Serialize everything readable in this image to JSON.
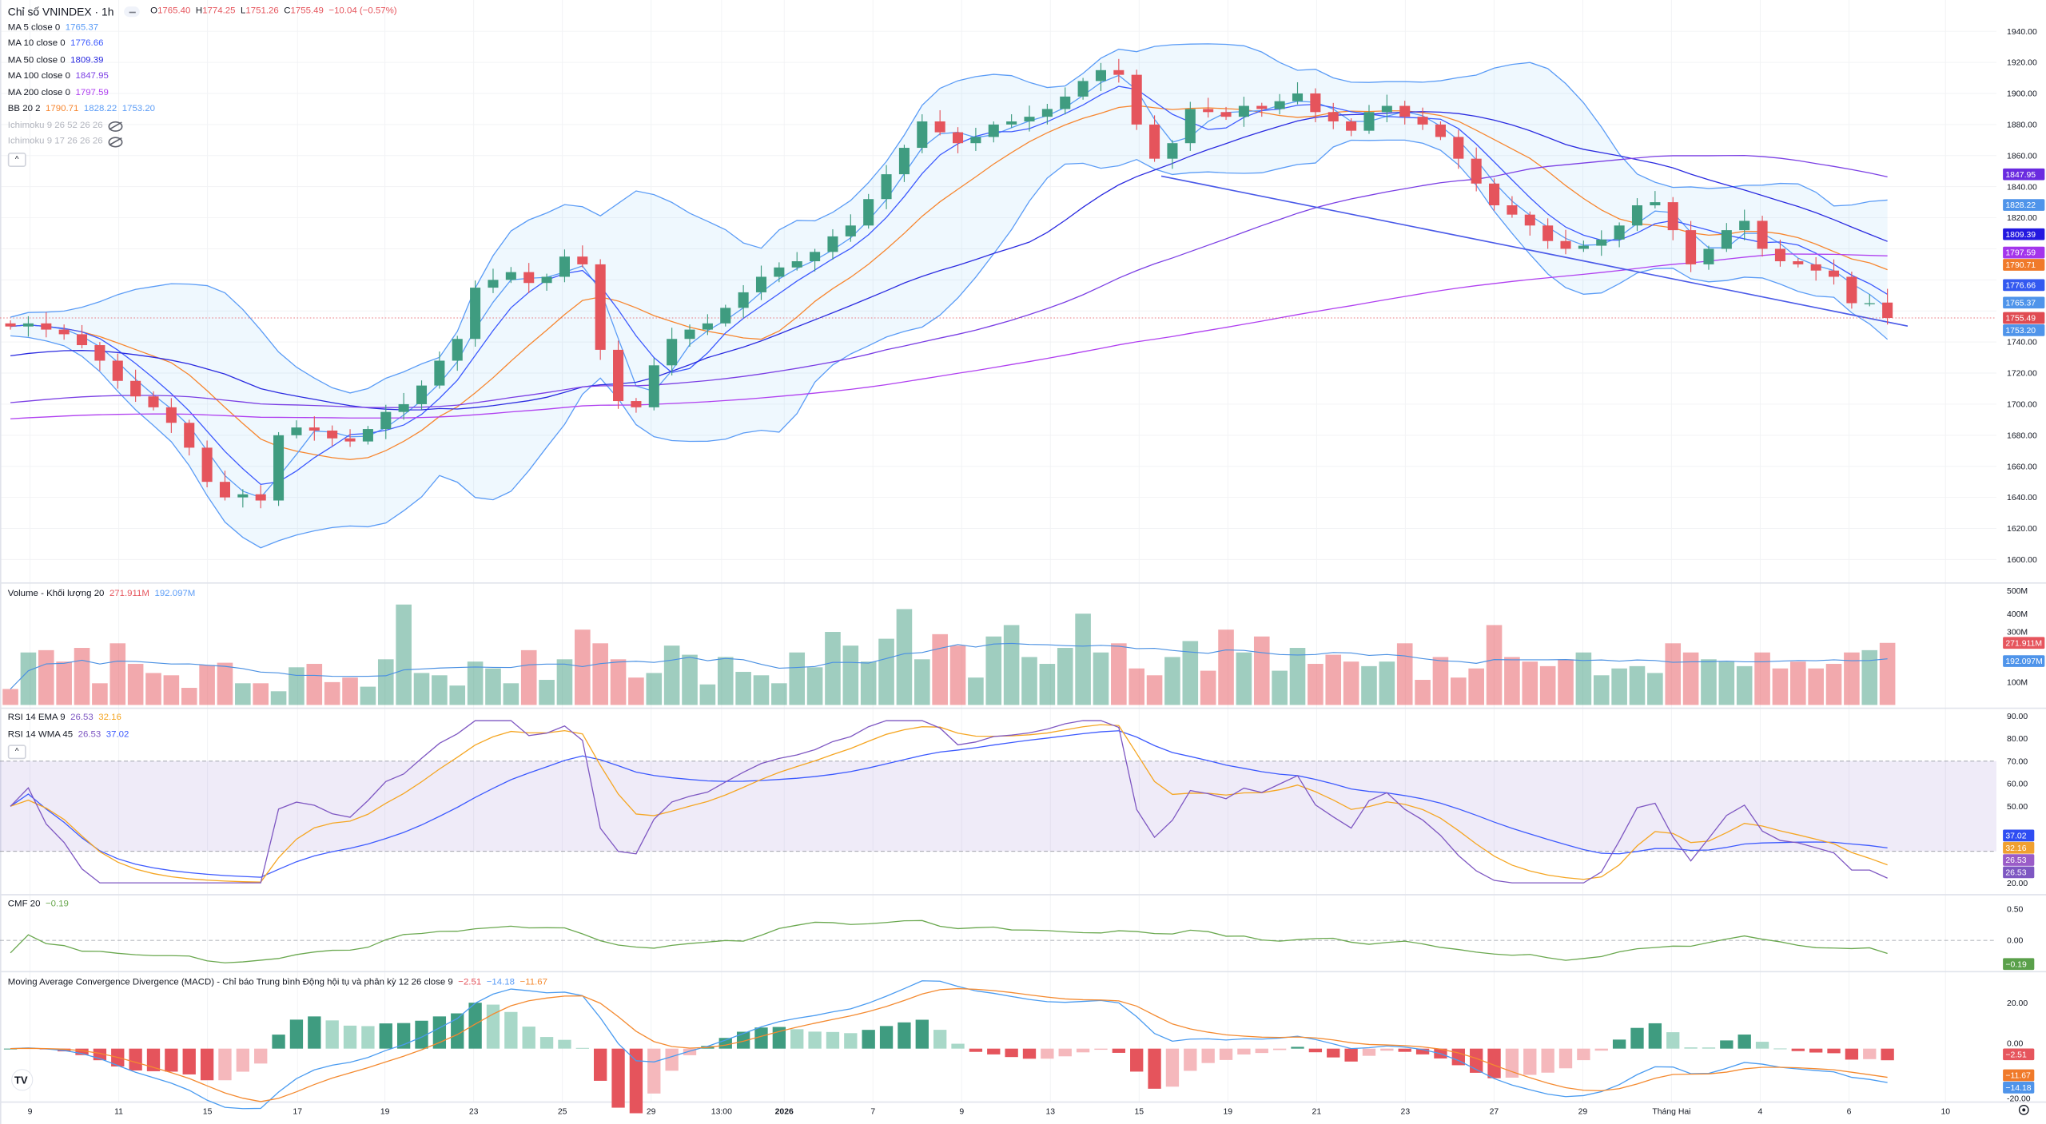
{
  "header": {
    "title": "Chỉ số VNINDEX · 1h",
    "o_label": "O",
    "o": "1765.40",
    "h_label": "H",
    "h": "1774.25",
    "l_label": "L",
    "l": "1751.26",
    "c_label": "C",
    "c": "1755.49",
    "change": "−10.04 (−0.57%)"
  },
  "indicators": [
    {
      "name": "MA 5 close 0",
      "value": "1765.37",
      "color": "#5b9cf6"
    },
    {
      "name": "MA 10 close 0",
      "value": "1776.66",
      "color": "#3d5afe"
    },
    {
      "name": "MA 50 close 0",
      "value": "1809.39",
      "color": "#2a2ae0"
    },
    {
      "name": "MA 100 close 0",
      "value": "1847.95",
      "color": "#7b3fe4"
    },
    {
      "name": "MA 200 close 0",
      "value": "1797.59",
      "color": "#b040f0"
    }
  ],
  "bb": {
    "name": "BB 20 2",
    "basis": "1790.71",
    "upper": "1828.22",
    "lower": "1753.20",
    "basis_color": "#f7862f",
    "band_color": "#5b9cf6"
  },
  "ichimoku": [
    {
      "name": "Ichimoku 9 26 52 26 26"
    },
    {
      "name": "Ichimoku 9 17 26 26 26"
    }
  ],
  "volume_legend": {
    "name": "Volume - Khối lượng 20",
    "v1": "271.911M",
    "v2": "192.097M"
  },
  "rsi_legend": [
    {
      "name": "RSI 14 EMA 9",
      "v1": "26.53",
      "v2": "32.16"
    },
    {
      "name": "RSI 14 WMA 45",
      "v1": "26.53",
      "v2": "37.02"
    }
  ],
  "cmf_legend": {
    "name": "CMF 20",
    "value": "−0.19"
  },
  "macd_legend": {
    "name": "Moving Average Convergence Divergence (MACD) - Chỉ báo Trung bình Động hội tụ và phân kỳ 12 26 close 9",
    "v1": "−2.51",
    "v2": "−14.18",
    "v3": "−11.67"
  },
  "axes": {
    "price_ticks": [
      "1940.00",
      "1920.00",
      "1900.00",
      "1880.00",
      "1860.00",
      "1840.00",
      "1820.00",
      "1740.00",
      "1720.00",
      "1700.00",
      "1680.00",
      "1660.00",
      "1640.00",
      "1620.00",
      "1600.00"
    ],
    "volume_ticks": [
      "500M",
      "400M",
      "300M",
      "100M"
    ],
    "rsi_ticks": [
      "90.00",
      "80.00",
      "70.00",
      "60.00",
      "50.00",
      "20.00"
    ],
    "cmf_ticks": [
      "0.50",
      "0.00"
    ],
    "macd_ticks": [
      "20.00",
      "0.00",
      "-20.00"
    ],
    "time_labels": [
      {
        "label": "9",
        "bold": false
      },
      {
        "label": "11",
        "bold": false
      },
      {
        "label": "15",
        "bold": false
      },
      {
        "label": "17",
        "bold": false
      },
      {
        "label": "19",
        "bold": false
      },
      {
        "label": "23",
        "bold": false
      },
      {
        "label": "25",
        "bold": false
      },
      {
        "label": "29",
        "bold": false
      },
      {
        "label": "13:00",
        "bold": false
      },
      {
        "label": "2026",
        "bold": true
      },
      {
        "label": "7",
        "bold": false
      },
      {
        "label": "9",
        "bold": false
      },
      {
        "label": "13",
        "bold": false
      },
      {
        "label": "15",
        "bold": false
      },
      {
        "label": "19",
        "bold": false
      },
      {
        "label": "21",
        "bold": false
      },
      {
        "label": "23",
        "bold": false
      },
      {
        "label": "27",
        "bold": false
      },
      {
        "label": "29",
        "bold": false
      },
      {
        "label": "Tháng Hai",
        "bold": false
      },
      {
        "label": "4",
        "bold": false
      },
      {
        "label": "6",
        "bold": false
      },
      {
        "label": "10",
        "bold": false
      }
    ]
  },
  "badges": {
    "price": [
      {
        "label": "1847.95",
        "value": 1847.95,
        "color": "#6a2be0"
      },
      {
        "label": "1828.22",
        "value": 1828.22,
        "color": "#4f94ea"
      },
      {
        "label": "1809.39",
        "value": 1809.39,
        "color": "#2318e0"
      },
      {
        "label": "1797.59",
        "value": 1797.59,
        "color": "#a435ec"
      },
      {
        "label": "1790.71",
        "value": 1790.71,
        "color": "#f07a2a"
      },
      {
        "label": "1776.66",
        "value": 1776.66,
        "color": "#3359f0"
      },
      {
        "label": "1765.37",
        "value": 1765.37,
        "color": "#4f94ea"
      },
      {
        "label": "1755.49",
        "value": 1755.49,
        "color": "#e04b52"
      },
      {
        "label": "1753.20",
        "value": 1753.2,
        "color": "#4f94ea"
      }
    ],
    "volume": [
      {
        "label": "271.911M",
        "value": 271.911,
        "color": "#e6555d"
      },
      {
        "label": "192.097M",
        "value": 192.097,
        "color": "#4f94ea"
      }
    ],
    "rsi": [
      {
        "label": "37.02",
        "value": 37.02,
        "color": "#2f4df2"
      },
      {
        "label": "32.16",
        "value": 32.16,
        "color": "#f0a030"
      },
      {
        "label": "26.53",
        "value": 26.53,
        "color": "#9a5cc8"
      },
      {
        "label": "26.53",
        "value": 26.53,
        "color": "#7e57c2"
      }
    ],
    "cmf": [
      {
        "label": "−0.19",
        "value": -0.19,
        "color": "#5aa04a"
      }
    ],
    "macd": [
      {
        "label": "−2.51",
        "value": -2.51,
        "color": "#e6555d"
      },
      {
        "label": "−11.67",
        "value": -11.67,
        "color": "#f07a2a"
      },
      {
        "label": "−14.18",
        "value": -14.18,
        "color": "#4f94ea"
      }
    ]
  },
  "colors": {
    "up": "#3f9c80",
    "down": "#e5545c",
    "rsi": "#7e57c2",
    "rsi_ema": "#f5a623",
    "rsi_wma": "#3d5afe",
    "cmf": "#6aa84f",
    "macd": "#4a9bf0",
    "signal": "#f48a30",
    "trend": "#4a5ae8"
  },
  "chart_data": {
    "type": "candlestick",
    "title": "Chỉ số VNINDEX · 1h",
    "ylim": [
      1600,
      1940
    ],
    "closes": [
      1750,
      1752,
      1748,
      1745,
      1738,
      1728,
      1715,
      1705,
      1698,
      1688,
      1672,
      1650,
      1640,
      1642,
      1638,
      1680,
      1685,
      1683,
      1678,
      1676,
      1684,
      1695,
      1700,
      1712,
      1728,
      1742,
      1775,
      1780,
      1785,
      1778,
      1782,
      1795,
      1790,
      1735,
      1702,
      1698,
      1725,
      1742,
      1748,
      1752,
      1762,
      1772,
      1782,
      1788,
      1792,
      1798,
      1808,
      1815,
      1832,
      1848,
      1865,
      1882,
      1875,
      1868,
      1872,
      1880,
      1882,
      1885,
      1890,
      1898,
      1908,
      1915,
      1912,
      1880,
      1858,
      1868,
      1890,
      1888,
      1885,
      1892,
      1890,
      1895,
      1900,
      1888,
      1882,
      1876,
      1888,
      1892,
      1885,
      1880,
      1872,
      1858,
      1842,
      1828,
      1822,
      1815,
      1805,
      1800,
      1802,
      1806,
      1815,
      1828,
      1830,
      1812,
      1790,
      1800,
      1812,
      1818,
      1800,
      1792,
      1790,
      1786,
      1782,
      1765,
      1765,
      1755.49
    ],
    "volumes_m": [
      70,
      230,
      240,
      190,
      250,
      95,
      270,
      180,
      140,
      130,
      75,
      175,
      185,
      95,
      95,
      60,
      165,
      180,
      100,
      120,
      80,
      200,
      440,
      140,
      130,
      85,
      190,
      160,
      95,
      240,
      110,
      200,
      330,
      270,
      200,
      120,
      140,
      260,
      220,
      90,
      210,
      145,
      130,
      95,
      230,
      165,
      320,
      260,
      190,
      290,
      420,
      200,
      310,
      260,
      120,
      300,
      350,
      210,
      180,
      250,
      400,
      230,
      270,
      160,
      130,
      210,
      280,
      150,
      330,
      230,
      300,
      150,
      250,
      180,
      220,
      190,
      170,
      190,
      270,
      110,
      210,
      120,
      160,
      350,
      210,
      190,
      170,
      200,
      230,
      130,
      160,
      170,
      140,
      270,
      230,
      200,
      190,
      170,
      230,
      160,
      190,
      160,
      180,
      230,
      240,
      271.911
    ],
    "price_axis_ticks": [
      1600,
      1620,
      1640,
      1660,
      1680,
      1700,
      1720,
      1740,
      1760,
      1780,
      1800,
      1820,
      1840,
      1860,
      1880,
      1900,
      1920,
      1940
    ]
  }
}
